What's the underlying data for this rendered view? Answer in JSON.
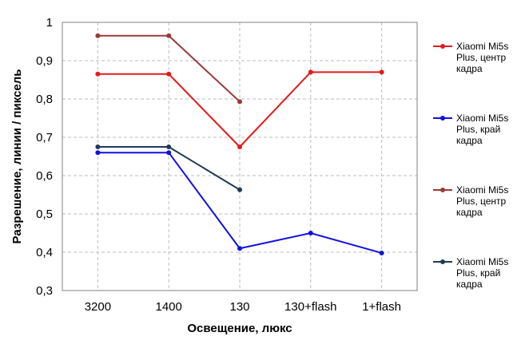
{
  "chart_data": {
    "type": "line",
    "xlabel": "Освещение,  люкс",
    "ylabel": "Разрешение,  линии / пиксель",
    "categories": [
      "3200",
      "1400",
      "130",
      "130+flash",
      "1+flash"
    ],
    "ylim": [
      0.3,
      1.0
    ],
    "yticks": [
      {
        "value": 0.3,
        "label": "0,3"
      },
      {
        "value": 0.4,
        "label": "0,4"
      },
      {
        "value": 0.5,
        "label": "0,5"
      },
      {
        "value": 0.6,
        "label": "0,6"
      },
      {
        "value": 0.7,
        "label": "0,7"
      },
      {
        "value": 0.8,
        "label": "0,8"
      },
      {
        "value": 0.9,
        "label": "0,9"
      },
      {
        "value": 1.0,
        "label": "1"
      }
    ],
    "grid": true,
    "legend_position": "right",
    "series": [
      {
        "name_lines": [
          "Xiaomi Mi5s",
          "Plus, центр",
          "кадра"
        ],
        "color": "#e31a1c",
        "values": [
          0.865,
          0.865,
          0.675,
          0.87,
          0.87
        ]
      },
      {
        "name_lines": [
          "Xiaomi Mi5s",
          "Plus, край",
          "кадра"
        ],
        "color": "#1010e0",
        "values": [
          0.66,
          0.66,
          0.41,
          0.45,
          0.398
        ]
      },
      {
        "name_lines": [
          "Xiaomi Mi5s",
          "Plus, центр",
          "кадра"
        ],
        "color": "#9a3a3a",
        "values": [
          0.965,
          0.965,
          0.793,
          null,
          null
        ]
      },
      {
        "name_lines": [
          "Xiaomi Mi5s",
          "Plus, край",
          "кадра"
        ],
        "color": "#1f3a55",
        "values": [
          0.675,
          0.675,
          0.563,
          null,
          null
        ]
      }
    ]
  }
}
